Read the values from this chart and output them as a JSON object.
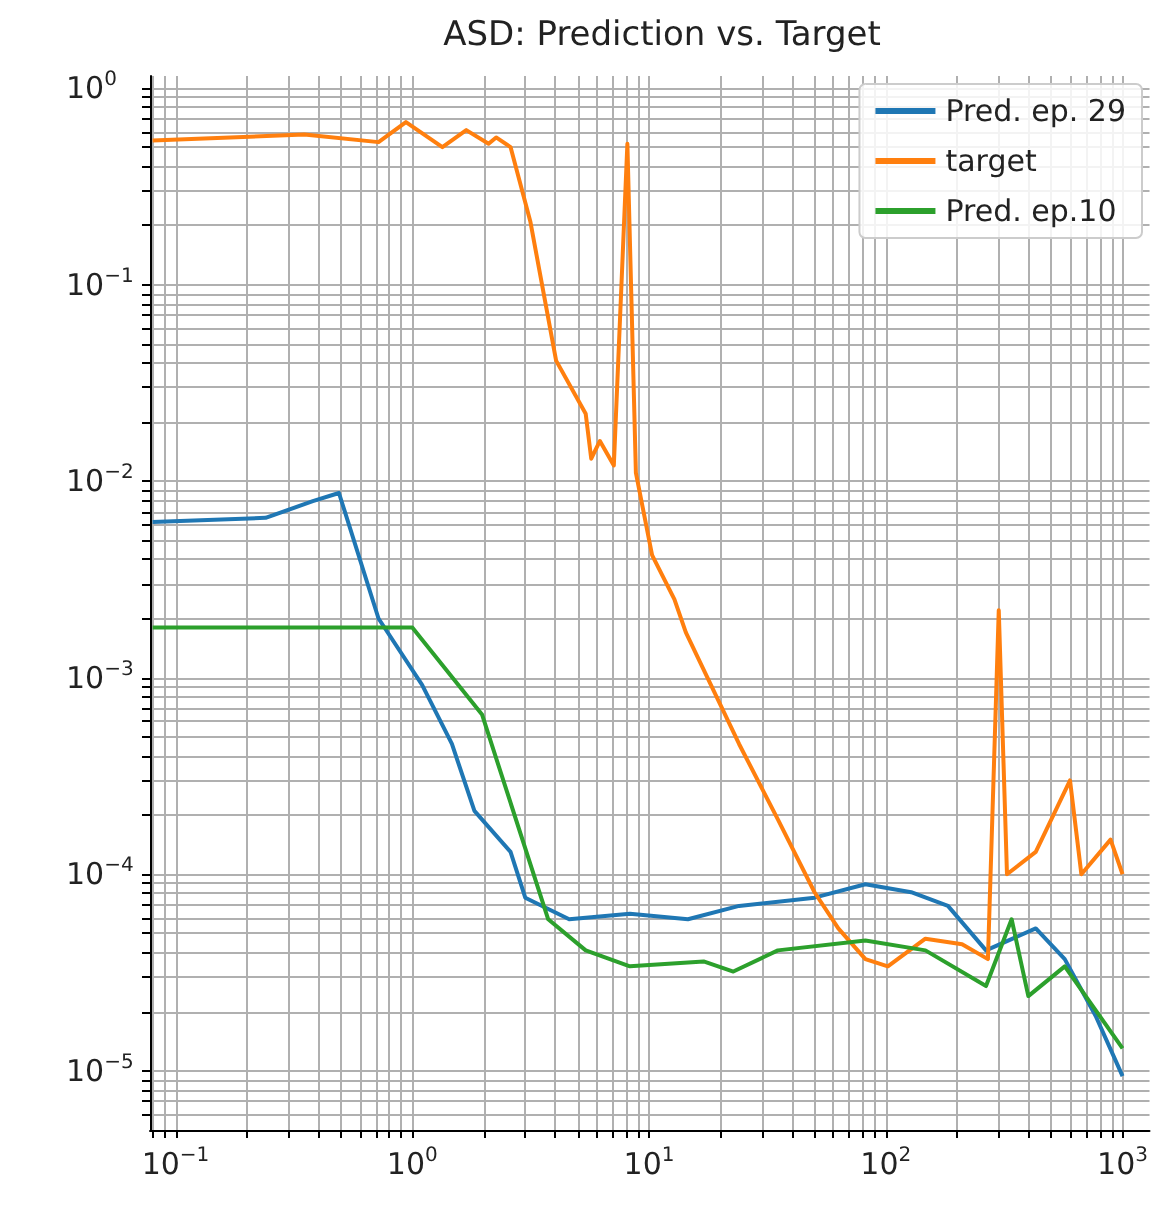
{
  "chart_data": {
    "type": "line",
    "title": "ASD: Prediction vs. Target",
    "log": "xy",
    "grid": true,
    "legend": "top right",
    "xlim": [
      0.078,
      1300
    ],
    "ylim": [
      5e-06,
      1.15
    ],
    "xticks": [
      {
        "value": 0.1,
        "label": "10$^{−1}$"
      },
      {
        "value": 1,
        "label": "10$^{0}$"
      },
      {
        "value": 10,
        "label": "10$^{1}$"
      },
      {
        "value": 100,
        "label": "10$^{2}$"
      },
      {
        "value": 1000,
        "label": "10$^{3}$"
      }
    ],
    "yticks": [
      {
        "value": 1e-05,
        "label": "10$^{−5}$"
      },
      {
        "value": 0.0001,
        "label": "10$^{−4}$"
      },
      {
        "value": 0.001,
        "label": "10$^{−3}$"
      },
      {
        "value": 0.01,
        "label": "10$^{−2}$"
      },
      {
        "value": 0.1,
        "label": "10$^{−1}$"
      },
      {
        "value": 1,
        "label": "10$^{0}$"
      }
    ],
    "series": [
      {
        "name": "Pred. ep. 29",
        "color": "#1f77b4",
        "x": [
          0.08,
          0.24,
          0.38,
          0.49,
          0.72,
          1.1,
          1.47,
          1.83,
          2.6,
          3.0,
          4.6,
          8.3,
          14.6,
          24,
          50,
          82,
          128,
          183,
          265,
          430,
          570,
          770,
          1000
        ],
        "values": [
          0.0062,
          0.0065,
          0.0079,
          0.0087,
          0.002,
          0.00092,
          0.00046,
          0.00021,
          0.00013,
          7.6e-05,
          5.9e-05,
          6.3e-05,
          5.9e-05,
          6.9e-05,
          7.6e-05,
          8.9e-05,
          8.1e-05,
          6.9e-05,
          4.1e-05,
          5.3e-05,
          3.7e-05,
          1.9e-05,
          9.4e-06
        ]
      },
      {
        "name": "target",
        "color": "#ff7f0e",
        "x": [
          0.08,
          0.35,
          0.72,
          0.94,
          1.34,
          1.69,
          2.1,
          2.26,
          2.6,
          3.15,
          4.05,
          5.4,
          5.7,
          6.2,
          7.1,
          8.1,
          8.8,
          10.3,
          12.8,
          14.3,
          24,
          35,
          50,
          63,
          82,
          102,
          147,
          210,
          270,
          300,
          325,
          430,
          600,
          670,
          890,
          1000
        ],
        "values": [
          0.54,
          0.58,
          0.53,
          0.67,
          0.5,
          0.61,
          0.52,
          0.56,
          0.5,
          0.21,
          0.041,
          0.022,
          0.013,
          0.016,
          0.012,
          0.52,
          0.011,
          0.0042,
          0.0025,
          0.0017,
          0.00046,
          0.00019,
          8.1e-05,
          5.3e-05,
          3.7e-05,
          3.4e-05,
          4.7e-05,
          4.4e-05,
          3.7e-05,
          0.0022,
          0.0001,
          0.00013,
          0.0003,
          0.0001,
          0.00015,
          0.0001
        ]
      },
      {
        "name": "Pred. ep.10",
        "color": "#2ca02c",
        "x": [
          0.08,
          1.0,
          1.97,
          3.75,
          5.4,
          8.3,
          17,
          22.7,
          35,
          82,
          147,
          265,
          340,
          400,
          570,
          1000
        ],
        "values": [
          0.0018,
          0.0018,
          0.00065,
          5.9e-05,
          4.1e-05,
          3.4e-05,
          3.6e-05,
          3.2e-05,
          4.1e-05,
          4.6e-05,
          4.1e-05,
          2.7e-05,
          5.9e-05,
          2.4e-05,
          3.4e-05,
          1.3e-05
        ]
      }
    ]
  }
}
